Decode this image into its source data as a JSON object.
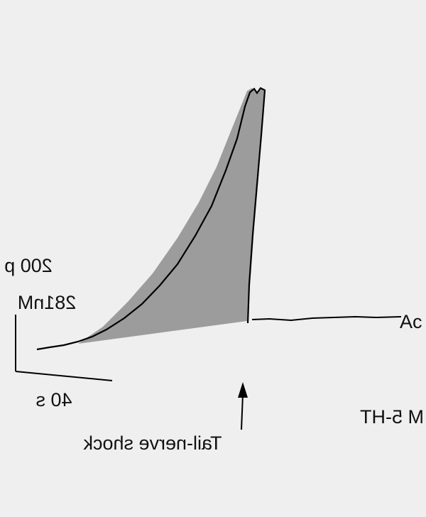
{
  "labels": {
    "current_scale": "200 p",
    "concentration_scale": "281nM",
    "time_scale": "40 s",
    "stimulus": "Tail-nerve shock",
    "drug": "M 5-HT",
    "trace_label": "Ac"
  }
}
